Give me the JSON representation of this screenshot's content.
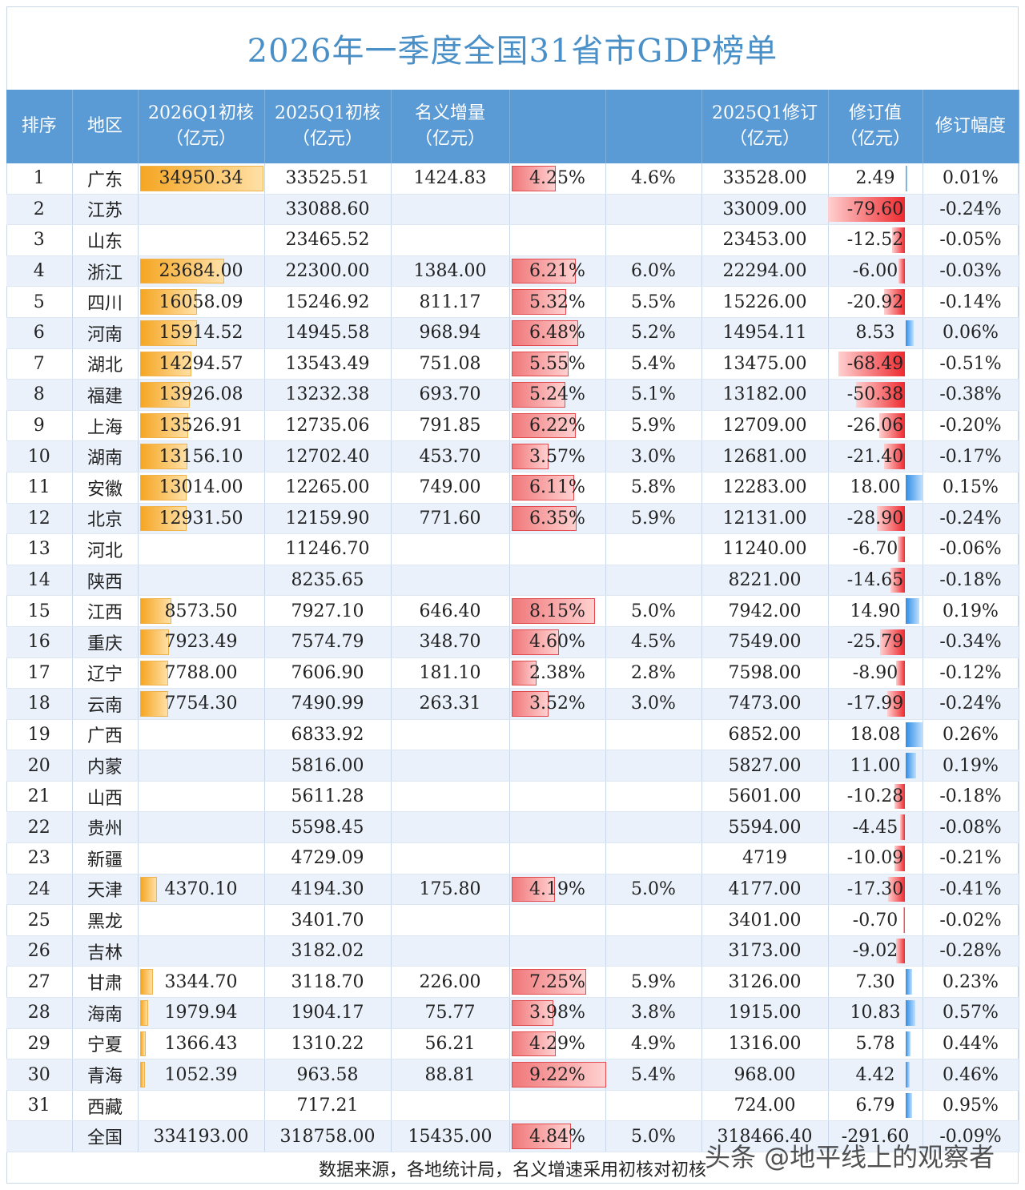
{
  "title": "2026年一季度全国31省市GDP榜单",
  "headers": [
    "排序",
    "地区",
    "2026Q1初核\n（亿元）",
    "2025Q1初核\n（亿元）",
    "名义增量\n（亿元）",
    "",
    "",
    "2025Q1修订\n（亿元）",
    "修订值\n（亿元）",
    "修订幅度"
  ],
  "colors": {
    "header": "#5b9bd5",
    "title": "#4a90c8",
    "gold_bar": "#f5a623",
    "red_bar": "#ee2a2f",
    "blue_bar": "#2f8de4"
  },
  "rows": [
    [
      "1",
      "广东",
      "34950.34",
      "33525.51",
      "1424.83",
      "4.25%",
      "4.6%",
      "33528.00",
      "2.49",
      "0.01%"
    ],
    [
      "2",
      "江苏",
      "",
      "33088.60",
      "",
      "",
      "",
      "33009.00",
      "-79.60",
      "-0.24%"
    ],
    [
      "3",
      "山东",
      "",
      "23465.52",
      "",
      "",
      "",
      "23453.00",
      "-12.52",
      "-0.05%"
    ],
    [
      "4",
      "浙江",
      "23684.00",
      "22300.00",
      "1384.00",
      "6.21%",
      "6.0%",
      "22294.00",
      "-6.00",
      "-0.03%"
    ],
    [
      "5",
      "四川",
      "16058.09",
      "15246.92",
      "811.17",
      "5.32%",
      "5.5%",
      "15226.00",
      "-20.92",
      "-0.14%"
    ],
    [
      "6",
      "河南",
      "15914.52",
      "14945.58",
      "968.94",
      "6.48%",
      "5.2%",
      "14954.11",
      "8.53",
      "0.06%"
    ],
    [
      "7",
      "湖北",
      "14294.57",
      "13543.49",
      "751.08",
      "5.55%",
      "5.4%",
      "13475.00",
      "-68.49",
      "-0.51%"
    ],
    [
      "8",
      "福建",
      "13926.08",
      "13232.38",
      "693.70",
      "5.24%",
      "5.1%",
      "13182.00",
      "-50.38",
      "-0.38%"
    ],
    [
      "9",
      "上海",
      "13526.91",
      "12735.06",
      "791.85",
      "6.22%",
      "5.9%",
      "12709.00",
      "-26.06",
      "-0.20%"
    ],
    [
      "10",
      "湖南",
      "13156.10",
      "12702.40",
      "453.70",
      "3.57%",
      "3.0%",
      "12681.00",
      "-21.40",
      "-0.17%"
    ],
    [
      "11",
      "安徽",
      "13014.00",
      "12265.00",
      "749.00",
      "6.11%",
      "5.8%",
      "12283.00",
      "18.00",
      "0.15%"
    ],
    [
      "12",
      "北京",
      "12931.50",
      "12159.90",
      "771.60",
      "6.35%",
      "5.9%",
      "12131.00",
      "-28.90",
      "-0.24%"
    ],
    [
      "13",
      "河北",
      "",
      "11246.70",
      "",
      "",
      "",
      "11240.00",
      "-6.70",
      "-0.06%"
    ],
    [
      "14",
      "陕西",
      "",
      "8235.65",
      "",
      "",
      "",
      "8221.00",
      "-14.65",
      "-0.18%"
    ],
    [
      "15",
      "江西",
      "8573.50",
      "7927.10",
      "646.40",
      "8.15%",
      "5.0%",
      "7942.00",
      "14.90",
      "0.19%"
    ],
    [
      "16",
      "重庆",
      "7923.49",
      "7574.79",
      "348.70",
      "4.60%",
      "4.5%",
      "7549.00",
      "-25.79",
      "-0.34%"
    ],
    [
      "17",
      "辽宁",
      "7788.00",
      "7606.90",
      "181.10",
      "2.38%",
      "2.8%",
      "7598.00",
      "-8.90",
      "-0.12%"
    ],
    [
      "18",
      "云南",
      "7754.30",
      "7490.99",
      "263.31",
      "3.52%",
      "3.0%",
      "7473.00",
      "-17.99",
      "-0.24%"
    ],
    [
      "19",
      "广西",
      "",
      "6833.92",
      "",
      "",
      "",
      "6852.00",
      "18.08",
      "0.26%"
    ],
    [
      "20",
      "内蒙",
      "",
      "5816.00",
      "",
      "",
      "",
      "5827.00",
      "11.00",
      "0.19%"
    ],
    [
      "21",
      "山西",
      "",
      "5611.28",
      "",
      "",
      "",
      "5601.00",
      "-10.28",
      "-0.18%"
    ],
    [
      "22",
      "贵州",
      "",
      "5598.45",
      "",
      "",
      "",
      "5594.00",
      "-4.45",
      "-0.08%"
    ],
    [
      "23",
      "新疆",
      "",
      "4729.09",
      "",
      "",
      "",
      "4719",
      "-10.09",
      "-0.21%"
    ],
    [
      "24",
      "天津",
      "4370.10",
      "4194.30",
      "175.80",
      "4.19%",
      "5.0%",
      "4177.00",
      "-17.30",
      "-0.41%"
    ],
    [
      "25",
      "黑龙",
      "",
      "3401.70",
      "",
      "",
      "",
      "3401.00",
      "-0.70",
      "-0.02%"
    ],
    [
      "26",
      "吉林",
      "",
      "3182.02",
      "",
      "",
      "",
      "3173.00",
      "-9.02",
      "-0.28%"
    ],
    [
      "27",
      "甘肃",
      "3344.70",
      "3118.70",
      "226.00",
      "7.25%",
      "5.9%",
      "3126.00",
      "7.30",
      "0.23%"
    ],
    [
      "28",
      "海南",
      "1979.94",
      "1904.17",
      "75.77",
      "3.98%",
      "3.8%",
      "1915.00",
      "10.83",
      "0.57%"
    ],
    [
      "29",
      "宁夏",
      "1366.43",
      "1310.22",
      "56.21",
      "4.29%",
      "4.9%",
      "1316.00",
      "5.78",
      "0.44%"
    ],
    [
      "30",
      "青海",
      "1052.39",
      "963.58",
      "88.81",
      "9.22%",
      "5.4%",
      "968.00",
      "4.42",
      "0.46%"
    ],
    [
      "31",
      "西藏",
      "",
      "717.21",
      "",
      "",
      "",
      "724.00",
      "6.79",
      "0.95%"
    ],
    [
      "",
      "全国",
      "334193.00",
      "318758.00",
      "15435.00",
      "4.84%",
      "5.0%",
      "318466.40",
      "-291.60",
      "-0.09%"
    ]
  ],
  "footer": "数据来源，各地统计局，名义增速采用初核对初核",
  "watermark": "头条 @地平线上的观察者"
}
